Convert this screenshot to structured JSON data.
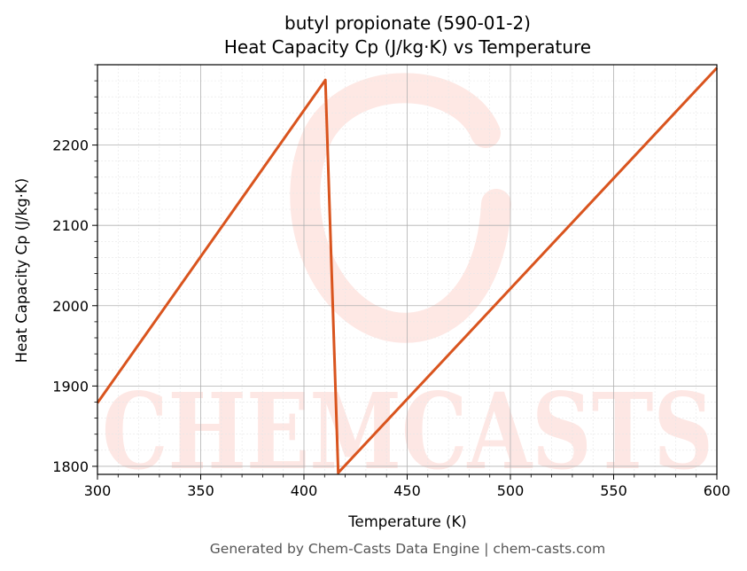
{
  "chart_data": {
    "type": "line",
    "title": "butyl propionate (590-01-2)",
    "subtitle": "Heat Capacity Cp (J/kg·K) vs Temperature",
    "xlabel": "Temperature (K)",
    "ylabel": "Heat Capacity Cp (J/kg·K)",
    "xlim": [
      300,
      600
    ],
    "ylim": [
      1790,
      2300
    ],
    "x_ticks": [
      300,
      350,
      400,
      450,
      500,
      550,
      600
    ],
    "y_ticks": [
      1800,
      1900,
      2000,
      2100,
      2200
    ],
    "grid": true,
    "legend": "none",
    "series": [
      {
        "color": "#d9541e",
        "x": [
          300,
          410.4,
          416.6,
          600
        ],
        "y": [
          1879,
          2281,
          1792,
          2296
        ]
      }
    ]
  },
  "watermark": {
    "text": "CHEMCASTS",
    "color": "#fde0db"
  },
  "footer": "Generated by Chem-Casts Data Engine | chem-casts.com"
}
